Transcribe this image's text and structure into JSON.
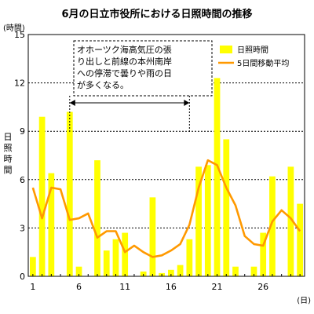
{
  "chart_data": {
    "type": "bar",
    "title": "6月の日立市役所における日照時間の推移",
    "ylabel": "日照時間",
    "y_unit": "(時間)",
    "x_unit": "(日)",
    "ylim": [
      0,
      15
    ],
    "yticks": [
      0,
      3,
      6,
      9,
      12,
      15
    ],
    "x": [
      1,
      2,
      3,
      4,
      5,
      6,
      7,
      8,
      9,
      10,
      11,
      12,
      13,
      14,
      15,
      16,
      17,
      18,
      19,
      20,
      21,
      22,
      23,
      24,
      25,
      26,
      27,
      28,
      29,
      30
    ],
    "xtick_labels": [
      1,
      6,
      11,
      16,
      21,
      26
    ],
    "grid": "horizontal dashed",
    "legend_position": "top-right",
    "series": [
      {
        "name": "日照時間",
        "type": "bar",
        "color": "#ffff00",
        "values": [
          1.2,
          9.9,
          6.4,
          0.0,
          10.2,
          0.6,
          0.0,
          7.2,
          1.6,
          2.3,
          2.7,
          0.0,
          0.3,
          4.9,
          0.2,
          0.4,
          0.7,
          2.3,
          6.8,
          6.9,
          12.3,
          8.5,
          0.6,
          0.0,
          0.6,
          2.7,
          6.2,
          0.0,
          6.8,
          4.5
        ]
      },
      {
        "name": "5日間移動平均",
        "type": "line",
        "color": "#ff9900",
        "values": [
          5.5,
          3.6,
          5.5,
          5.4,
          3.5,
          3.6,
          3.9,
          2.4,
          2.8,
          2.8,
          1.5,
          1.9,
          1.5,
          1.2,
          1.3,
          1.6,
          2.0,
          3.2,
          5.5,
          7.2,
          6.9,
          5.5,
          4.4,
          2.5,
          2.0,
          1.9,
          3.4,
          4.1,
          3.6,
          2.8
        ]
      }
    ],
    "annotation": {
      "lines": [
        "オホーツク海高気圧の張",
        "り出しと前線の本州南岸",
        "への停滞で曇りや雨の日",
        "が多くなる。"
      ],
      "span_from_day": 5,
      "span_to_day": 18
    }
  }
}
